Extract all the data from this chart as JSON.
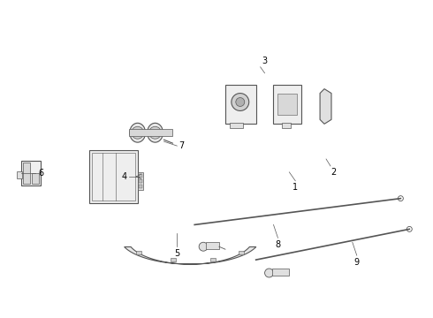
{
  "background_color": "#ffffff",
  "line_color": "#555555",
  "label_color": "#000000",
  "parts": {
    "part1": {
      "label": "1"
    },
    "part2": {
      "label": "2"
    },
    "part3": {
      "label": "3"
    },
    "part4": {
      "label": "4"
    },
    "part5": {
      "label": "5"
    },
    "part6": {
      "label": "6"
    },
    "part7": {
      "label": "7"
    },
    "part8": {
      "label": "8"
    },
    "part9": {
      "label": "9"
    }
  }
}
